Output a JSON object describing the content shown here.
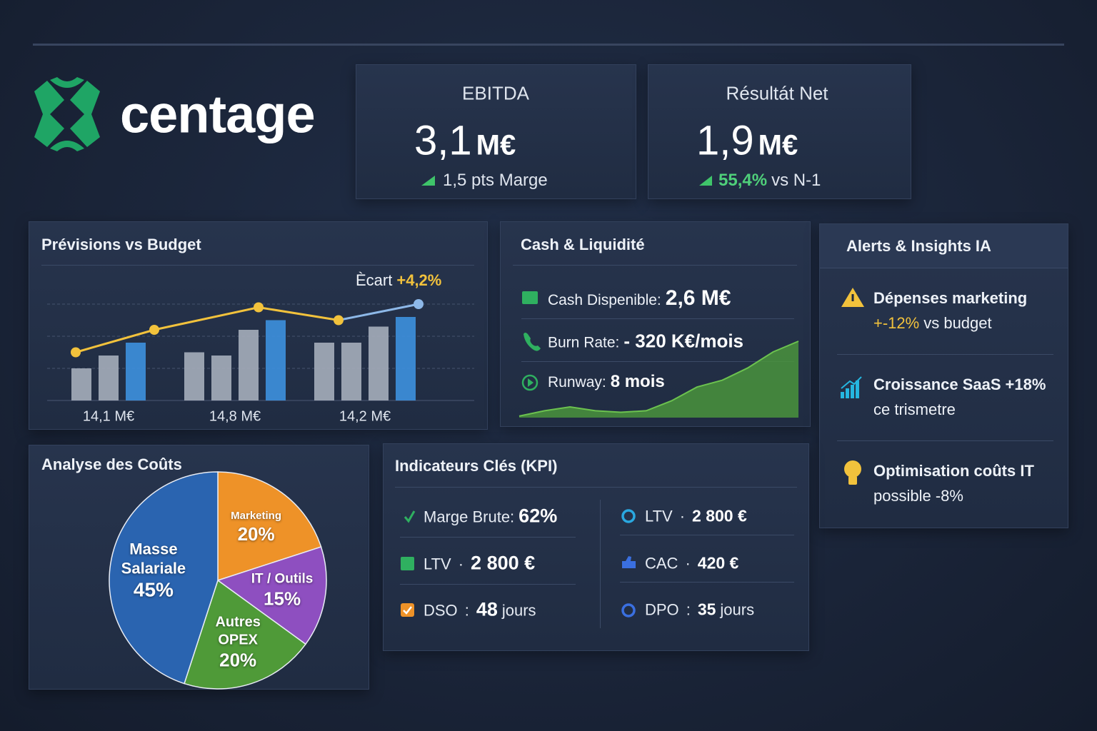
{
  "header": {
    "logo": "centage"
  },
  "summary": [
    {
      "title": "EBITDA",
      "value": "3,1",
      "unit": "M€",
      "delta": "1,5 pts Marge"
    },
    {
      "title": "Résultát Net",
      "value": "1,9",
      "unit": "M€",
      "delta_value": "55,4%",
      "delta": "vs N-1"
    }
  ],
  "forecast": {
    "title": "Prévisions vs Budget",
    "type": "bar",
    "annotation": {
      "label": "Ècart",
      "value": "+4,2%"
    },
    "ylim": [
      0,
      4
    ],
    "yticks": [
      1,
      2,
      3
    ],
    "grid": true,
    "groups": [
      {
        "label": "14,1 M€",
        "values": [
          1.0,
          1.4,
          1.8
        ],
        "colors": [
          "#a3abb8",
          "#a3abb8",
          "#3d8fdb"
        ]
      },
      {
        "label": "14,8 M€",
        "values": [
          1.5,
          1.4,
          2.2,
          2.5
        ],
        "colors": [
          "#a3abb8",
          "#a3abb8",
          "#a3abb8",
          "#3d8fdb"
        ]
      },
      {
        "label": "14,2 M€",
        "values": [
          1.8,
          1.8,
          2.3,
          2.6
        ],
        "colors": [
          "#a3abb8",
          "#a3abb8",
          "#a3abb8",
          "#3d8fdb"
        ]
      }
    ],
    "line": {
      "values": [
        1.5,
        2.2,
        2.9,
        2.5,
        3.0
      ],
      "color": "#f2c23c",
      "last_color": "#8db8e8"
    }
  },
  "cash": {
    "title": "Cash & Liquidité",
    "rows": [
      {
        "label": "Cash Dispenible:",
        "value": "2,6 M€"
      },
      {
        "label": "Burn Rate:",
        "value": "- 320 K€/mois"
      },
      {
        "label": "Runway:",
        "value": "8 mois"
      }
    ],
    "chart": {
      "type": "area",
      "values": [
        0.2,
        0.9,
        1.4,
        0.9,
        0.7,
        0.9,
        2.2,
        4.0,
        4.9,
        6.5,
        8.6,
        10
      ],
      "ylim": [
        0,
        10
      ],
      "color": "#4c9a3c"
    }
  },
  "alerts": {
    "title": "Alerts & Insights IA",
    "items": [
      {
        "lines": [
          [
            {
              "text": "Dépenses marketing"
            }
          ],
          [
            {
              "text": "+-12%",
              "highlight": true
            },
            {
              "text": "vs budget"
            }
          ]
        ]
      },
      {
        "lines": [
          [
            {
              "text": "Croissance SaaS"
            },
            {
              "text": "+18%"
            }
          ],
          [
            {
              "text": "ce trismetre"
            }
          ]
        ]
      },
      {
        "lines": [
          [
            {
              "text": "Optimisation coûts IT"
            }
          ],
          [
            {
              "text": "possible -8%"
            }
          ]
        ]
      }
    ]
  },
  "costs": {
    "title": "Analyse des Coûts",
    "type": "pie",
    "categories": [
      "Marketing",
      "IT / Outils",
      "Autres OPEX",
      "Masse Salariale"
    ],
    "values": [
      20,
      15,
      20,
      45
    ],
    "value_labels": [
      "20%",
      "15%",
      "20%",
      "45%"
    ],
    "colors": [
      "#ee9228",
      "#8e4fc0",
      "#4f9a38",
      "#2a64b0"
    ]
  },
  "kpi": {
    "title": "Indicateurs Clés (KPI)",
    "columns": [
      [
        {
          "label": "Marge Brute:",
          "value": "62%"
        },
        {
          "label": "LTV",
          "sep": "·",
          "value": "2 800 €"
        },
        {
          "label": "DSO",
          "sep": ":",
          "value": "48",
          "unit": "jours"
        }
      ],
      [
        {
          "label": "LTV",
          "sep": "·",
          "value": "2 800 €"
        },
        {
          "label": "CAC",
          "sep": "·",
          "value": "420 €"
        },
        {
          "label": "DPO",
          "sep": ":",
          "value": "35",
          "unit": "jours"
        }
      ]
    ]
  }
}
